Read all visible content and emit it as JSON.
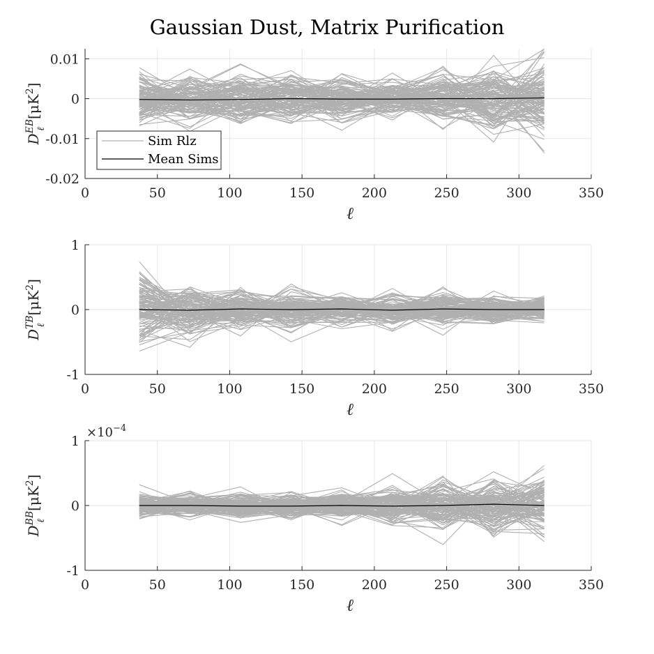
{
  "figure": {
    "title": "Gaussian Dust, Matrix Purification"
  },
  "chart_data": [
    {
      "type": "line",
      "xlabel": "ℓ",
      "ylabel": {
        "base": "D",
        "sub": "ℓ",
        "sup": "EB",
        "unit": "[μK",
        "unit_sup": "2",
        "unit_end": "]"
      },
      "xlim": [
        0,
        350
      ],
      "ylim": [
        -0.02,
        0.0125
      ],
      "xticks": [
        "0",
        "50",
        "100",
        "150",
        "200",
        "250",
        "300",
        "350"
      ],
      "xtick_values": [
        0,
        50,
        100,
        150,
        200,
        250,
        300,
        350
      ],
      "yticks": [
        "-0.02",
        "-0.01",
        "0",
        "0.01"
      ],
      "ytick_values": [
        -0.02,
        -0.01,
        0,
        0.01
      ],
      "grid": true,
      "legend": {
        "position": "bottom-left",
        "entries": [
          "Sim Rlz",
          "Mean Sims"
        ]
      },
      "x": [
        37.5,
        72.5,
        107.5,
        142.5,
        177.5,
        212.5,
        247.5,
        282.5,
        317.5
      ],
      "series": [
        {
          "name": "Sim Rlz",
          "color": "#b0b0b0",
          "band_sigma": [
            0.0032,
            0.003,
            0.003,
            0.003,
            0.0024,
            0.0022,
            0.003,
            0.004,
            0.0052
          ],
          "count": 120
        },
        {
          "name": "Mean Sims",
          "color": "#000000",
          "values": [
            -0.0002,
            -0.0003,
            -0.0002,
            0.0,
            -0.0001,
            -0.0001,
            0.0,
            0.0,
            0.0002
          ]
        }
      ]
    },
    {
      "type": "line",
      "xlabel": "ℓ",
      "ylabel": {
        "base": "D",
        "sub": "ℓ",
        "sup": "TB",
        "unit": "[μK",
        "unit_sup": "2",
        "unit_end": "]"
      },
      "xlim": [
        0,
        350
      ],
      "ylim": [
        -1,
        1
      ],
      "xticks": [
        "0",
        "50",
        "100",
        "150",
        "200",
        "250",
        "300",
        "350"
      ],
      "xtick_values": [
        0,
        50,
        100,
        150,
        200,
        250,
        300,
        350
      ],
      "yticks": [
        "-1",
        "0",
        "1"
      ],
      "ytick_values": [
        -1,
        0,
        1
      ],
      "grid": true,
      "x": [
        37.5,
        72.5,
        107.5,
        142.5,
        177.5,
        212.5,
        247.5,
        282.5,
        317.5
      ],
      "series": [
        {
          "name": "Sim Rlz",
          "color": "#b0b0b0",
          "band_sigma": [
            0.27,
            0.19,
            0.17,
            0.15,
            0.12,
            0.12,
            0.12,
            0.1,
            0.085
          ],
          "count": 120
        },
        {
          "name": "Mean Sims",
          "color": "#000000",
          "values": [
            0.0,
            -0.01,
            0.01,
            0.0,
            0.01,
            -0.01,
            0.01,
            0.0,
            0.0
          ]
        }
      ]
    },
    {
      "type": "line",
      "xlabel": "ℓ",
      "ylabel": {
        "base": "D",
        "sub": "ℓ",
        "sup": "BB",
        "unit": "[μK",
        "unit_sup": "2",
        "unit_end": "]"
      },
      "xlim": [
        0,
        350
      ],
      "ylim": [
        -1,
        1
      ],
      "exponent_label": "×10",
      "exponent_power": "−4",
      "xticks": [
        "0",
        "50",
        "100",
        "150",
        "200",
        "250",
        "300",
        "350"
      ],
      "xtick_values": [
        0,
        50,
        100,
        150,
        200,
        250,
        300,
        350
      ],
      "yticks": [
        "-1",
        "0",
        "1"
      ],
      "ytick_values": [
        -1,
        0,
        1
      ],
      "grid": true,
      "x": [
        37.5,
        72.5,
        107.5,
        142.5,
        177.5,
        212.5,
        247.5,
        282.5,
        317.5
      ],
      "series": [
        {
          "name": "Sim Rlz",
          "color": "#b0b0b0",
          "band_sigma": [
            0.09,
            0.09,
            0.09,
            0.1,
            0.1,
            0.14,
            0.2,
            0.2,
            0.22
          ],
          "count": 120
        },
        {
          "name": "Mean Sims",
          "color": "#000000",
          "values": [
            0.0,
            0.0,
            -0.01,
            -0.01,
            0.0,
            -0.01,
            0.0,
            0.02,
            0.0
          ]
        }
      ]
    }
  ]
}
